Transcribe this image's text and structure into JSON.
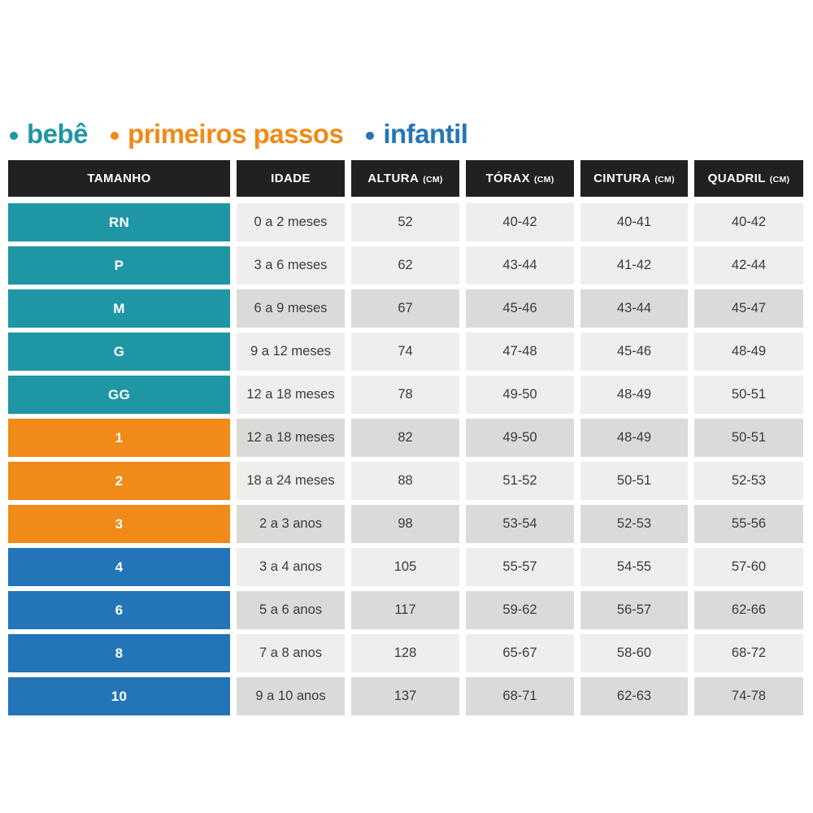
{
  "legend": {
    "items": [
      {
        "key": "bebe",
        "label": "bebê",
        "color": "#1e96a4"
      },
      {
        "key": "primeiros-passos",
        "label": "primeiros passos",
        "color": "#f08a18"
      },
      {
        "key": "infantil",
        "label": "infantil",
        "color": "#2475b8"
      }
    ]
  },
  "colors": {
    "header_bg": "#232021",
    "header_text": "#ffffff",
    "teal": "#1e96a4",
    "orange": "#f08a18",
    "blue": "#2475b8",
    "cell_light": "#efeeec",
    "cell_dark": "#dbdad8",
    "cell_text": "#3b3b3b"
  },
  "table": {
    "headers": [
      {
        "label": "TAMANHO",
        "unit": ""
      },
      {
        "label": "IDADE",
        "unit": ""
      },
      {
        "label": "ALTURA",
        "unit": "(CM)"
      },
      {
        "label": "TÓRAX",
        "unit": "(CM)"
      },
      {
        "label": "CINTURA",
        "unit": "(CM)"
      },
      {
        "label": "QUADRIL",
        "unit": "(CM)"
      }
    ],
    "rows": [
      {
        "size": "RN",
        "group": "bebe",
        "shade": "light",
        "idade": "0 a 2 meses",
        "altura": "52",
        "torax": "40-42",
        "cintura": "40-41",
        "quadril": "40-42"
      },
      {
        "size": "P",
        "group": "bebe",
        "shade": "light",
        "idade": "3 a 6 meses",
        "altura": "62",
        "torax": "43-44",
        "cintura": "41-42",
        "quadril": "42-44"
      },
      {
        "size": "M",
        "group": "bebe",
        "shade": "dark",
        "idade": "6 a 9 meses",
        "altura": "67",
        "torax": "45-46",
        "cintura": "43-44",
        "quadril": "45-47"
      },
      {
        "size": "G",
        "group": "bebe",
        "shade": "light",
        "idade": "9 a 12 meses",
        "altura": "74",
        "torax": "47-48",
        "cintura": "45-46",
        "quadril": "48-49"
      },
      {
        "size": "GG",
        "group": "bebe",
        "shade": "light",
        "idade": "12 a 18 meses",
        "altura": "78",
        "torax": "49-50",
        "cintura": "48-49",
        "quadril": "50-51"
      },
      {
        "size": "1",
        "group": "primeiros-passos",
        "shade": "dark",
        "idade": "12 a 18 meses",
        "altura": "82",
        "torax": "49-50",
        "cintura": "48-49",
        "quadril": "50-51"
      },
      {
        "size": "2",
        "group": "primeiros-passos",
        "shade": "light",
        "idade": "18 a 24 meses",
        "altura": "88",
        "torax": "51-52",
        "cintura": "50-51",
        "quadril": "52-53"
      },
      {
        "size": "3",
        "group": "primeiros-passos",
        "shade": "dark",
        "idade": "2 a 3 anos",
        "altura": "98",
        "torax": "53-54",
        "cintura": "52-53",
        "quadril": "55-56"
      },
      {
        "size": "4",
        "group": "infantil",
        "shade": "light",
        "idade": "3 a 4 anos",
        "altura": "105",
        "torax": "55-57",
        "cintura": "54-55",
        "quadril": "57-60"
      },
      {
        "size": "6",
        "group": "infantil",
        "shade": "dark",
        "idade": "5 a 6 anos",
        "altura": "117",
        "torax": "59-62",
        "cintura": "56-57",
        "quadril": "62-66"
      },
      {
        "size": "8",
        "group": "infantil",
        "shade": "light",
        "idade": "7 a 8 anos",
        "altura": "128",
        "torax": "65-67",
        "cintura": "58-60",
        "quadril": "68-72"
      },
      {
        "size": "10",
        "group": "infantil",
        "shade": "dark",
        "idade": "9 a 10 anos",
        "altura": "137",
        "torax": "68-71",
        "cintura": "62-63",
        "quadril": "74-78"
      }
    ]
  },
  "chart_data": {
    "type": "table",
    "title": "",
    "legend": [
      "bebê",
      "primeiros passos",
      "infantil"
    ],
    "columns": [
      "TAMANHO",
      "IDADE",
      "ALTURA (CM)",
      "TÓRAX (CM)",
      "CINTURA (CM)",
      "QUADRIL (CM)"
    ],
    "rows": [
      [
        "RN",
        "0 a 2 meses",
        "52",
        "40-42",
        "40-41",
        "40-42"
      ],
      [
        "P",
        "3 a 6 meses",
        "62",
        "43-44",
        "41-42",
        "42-44"
      ],
      [
        "M",
        "6 a 9 meses",
        "67",
        "45-46",
        "43-44",
        "45-47"
      ],
      [
        "G",
        "9 a 12 meses",
        "74",
        "47-48",
        "45-46",
        "48-49"
      ],
      [
        "GG",
        "12 a 18 meses",
        "78",
        "49-50",
        "48-49",
        "50-51"
      ],
      [
        "1",
        "12 a 18 meses",
        "82",
        "49-50",
        "48-49",
        "50-51"
      ],
      [
        "2",
        "18 a 24 meses",
        "88",
        "51-52",
        "50-51",
        "52-53"
      ],
      [
        "3",
        "2 a 3 anos",
        "98",
        "53-54",
        "52-53",
        "55-56"
      ],
      [
        "4",
        "3 a 4 anos",
        "105",
        "55-57",
        "54-55",
        "57-60"
      ],
      [
        "6",
        "5 a 6 anos",
        "117",
        "59-62",
        "56-57",
        "62-66"
      ],
      [
        "8",
        "7 a 8 anos",
        "128",
        "65-67",
        "58-60",
        "68-72"
      ],
      [
        "10",
        "9 a 10 anos",
        "137",
        "68-71",
        "62-63",
        "74-78"
      ]
    ],
    "row_groups": [
      "bebê",
      "bebê",
      "bebê",
      "bebê",
      "bebê",
      "primeiros passos",
      "primeiros passos",
      "primeiros passos",
      "infantil",
      "infantil",
      "infantil",
      "infantil"
    ]
  }
}
